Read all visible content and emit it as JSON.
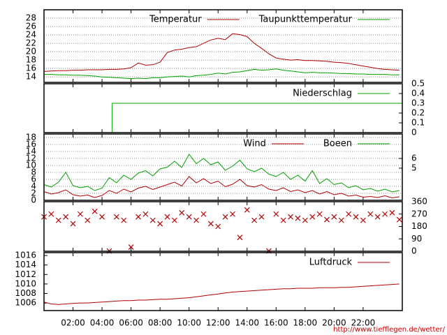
{
  "chart_data": [
    {
      "type": "line",
      "yaxis_side": "left",
      "grid": true,
      "legend": "upper right",
      "xlim": [
        0,
        24.7
      ],
      "ylim": [
        12.7,
        30
      ],
      "yticks": [
        14,
        16,
        18,
        20,
        22,
        24,
        26,
        28
      ],
      "x": [
        0,
        0.5,
        1,
        1.5,
        2,
        2.5,
        3,
        3.5,
        4,
        4.5,
        5,
        5.5,
        6,
        6.5,
        7,
        7.5,
        8,
        8.5,
        9,
        9.5,
        10,
        10.5,
        11,
        11.5,
        12,
        12.5,
        13,
        13.5,
        14,
        14.5,
        15,
        15.5,
        16,
        16.5,
        17,
        17.5,
        18,
        18.5,
        19,
        19.5,
        20,
        20.5,
        21,
        21.5,
        22,
        22.5,
        23,
        23.5,
        24,
        24.5
      ],
      "series": [
        {
          "name": "Temperatur",
          "color": "#b00000",
          "values": [
            15.3,
            15.4,
            15.5,
            15.5,
            15.6,
            15.6,
            15.7,
            15.7,
            15.7,
            15.8,
            15.8,
            15.9,
            16.2,
            17.3,
            16.8,
            16.9,
            17.5,
            19.8,
            20.4,
            20.6,
            21.0,
            21.2,
            22.0,
            22.8,
            23.2,
            22.9,
            24.3,
            24.1,
            23.6,
            22.0,
            20.8,
            19.5,
            18.5,
            18.2,
            18.0,
            18.1,
            17.9,
            17.9,
            17.8,
            17.7,
            17.5,
            17.4,
            17.2,
            16.9,
            16.6,
            16.3,
            16.0,
            15.8,
            15.7,
            15.6
          ]
        },
        {
          "name": "Taupunkttemperatur",
          "color": "#00a000",
          "values": [
            14.6,
            14.6,
            14.5,
            14.5,
            14.4,
            14.4,
            14.3,
            14.2,
            14.0,
            13.9,
            13.8,
            13.7,
            13.6,
            13.7,
            13.6,
            13.8,
            13.8,
            14.0,
            14.1,
            14.2,
            14.0,
            14.3,
            14.4,
            14.6,
            14.9,
            14.7,
            15.1,
            15.2,
            15.5,
            15.8,
            15.6,
            15.7,
            15.9,
            15.6,
            15.4,
            15.2,
            15.0,
            15.1,
            15.0,
            15.0,
            14.9,
            14.8,
            14.8,
            14.7,
            14.7,
            14.6,
            14.6,
            14.6,
            14.5,
            14.5
          ]
        }
      ]
    },
    {
      "type": "line",
      "yaxis_side": "right",
      "grid": false,
      "legend": "upper right",
      "xlim": [
        0,
        24.7
      ],
      "ylim": [
        0,
        0.5
      ],
      "yticks": [
        0,
        0.1,
        0.2,
        0.3,
        0.4,
        0.5
      ],
      "x": [
        0,
        4.7,
        4.7,
        24.7
      ],
      "series": [
        {
          "name": "Niederschlag",
          "color": "#00a000",
          "values": [
            0,
            0,
            0.3,
            0.3
          ]
        }
      ]
    },
    {
      "type": "line",
      "yaxis_side": "left",
      "grid": true,
      "legend": "upper right",
      "xlim": [
        0,
        24.7
      ],
      "ylim": [
        0,
        19
      ],
      "yticks": [
        0,
        2,
        4,
        6,
        8,
        10,
        12,
        14,
        16,
        18
      ],
      "y2lim": [
        1.71,
        8.5
      ],
      "y2ticks": [
        5,
        6
      ],
      "x": [
        0,
        0.5,
        1,
        1.5,
        2,
        2.5,
        3,
        3.5,
        4,
        4.5,
        5,
        5.5,
        6,
        6.5,
        7,
        7.5,
        8,
        8.5,
        9,
        9.5,
        10,
        10.5,
        11,
        11.5,
        12,
        12.5,
        13,
        13.5,
        14,
        14.5,
        15,
        15.5,
        16,
        16.5,
        17,
        17.5,
        18,
        18.5,
        19,
        19.5,
        20,
        20.5,
        21,
        21.5,
        22,
        22.5,
        23,
        23.5,
        24,
        24.5
      ],
      "series": [
        {
          "name": "Wind",
          "color": "#b00000",
          "values": [
            2.5,
            1.8,
            2.2,
            3.0,
            1.6,
            1.2,
            1.5,
            0.8,
            1.4,
            2.8,
            2.0,
            3.2,
            2.4,
            3.5,
            4.0,
            3.1,
            3.8,
            4.5,
            5.2,
            4.1,
            6.8,
            5.0,
            6.2,
            4.8,
            5.5,
            3.9,
            4.6,
            6.0,
            4.2,
            3.8,
            4.5,
            3.2,
            2.8,
            3.6,
            2.5,
            3.0,
            2.2,
            2.8,
            1.8,
            2.5,
            1.6,
            2.0,
            1.2,
            1.5,
            0.9,
            1.1,
            0.8,
            1.3,
            0.7,
            1.0
          ]
        },
        {
          "name": "Boeen",
          "color": "#00a000",
          "values": [
            4.5,
            3.8,
            5.2,
            8.0,
            4.2,
            3.6,
            4.0,
            2.8,
            3.5,
            6.5,
            5.0,
            7.2,
            6.0,
            7.8,
            8.5,
            7.0,
            9.0,
            9.5,
            11.2,
            9.4,
            13.2,
            10.5,
            12.0,
            10.2,
            11.0,
            8.6,
            9.8,
            11.5,
            9.0,
            8.2,
            9.2,
            7.5,
            6.8,
            8.0,
            6.0,
            7.2,
            5.5,
            8.5,
            4.8,
            6.2,
            4.5,
            5.0,
            3.6,
            4.2,
            3.0,
            3.4,
            2.6,
            3.2,
            2.4,
            2.8
          ]
        }
      ]
    },
    {
      "type": "scatter",
      "yaxis_side": "right",
      "grid": false,
      "xlim": [
        0,
        24.7
      ],
      "ylim": [
        0,
        360
      ],
      "yticks": [
        0,
        90,
        180,
        270,
        360
      ],
      "x": [
        0,
        0.5,
        1,
        1.5,
        2,
        2.5,
        3,
        3.5,
        4,
        4.5,
        5,
        5.5,
        6,
        6.5,
        7,
        7.5,
        8,
        8.5,
        9,
        9.5,
        10,
        10.5,
        11,
        11.5,
        12,
        12.5,
        13,
        13.5,
        14,
        14.5,
        15,
        15.5,
        16,
        16.5,
        17,
        17.5,
        18,
        18.5,
        19,
        19.5,
        20,
        20.5,
        21,
        21.5,
        22,
        22.5,
        23,
        23.5,
        24,
        24.5
      ],
      "series": [
        {
          "color": "#b00000",
          "values": [
            250,
            270,
            225,
            250,
            200,
            270,
            225,
            290,
            250,
            2,
            250,
            225,
            30,
            250,
            270,
            225,
            200,
            250,
            225,
            280,
            250,
            225,
            270,
            200,
            180,
            250,
            270,
            100,
            300,
            225,
            250,
            2,
            270,
            225,
            250,
            240,
            225,
            250,
            270,
            230,
            250,
            225,
            270,
            250,
            225,
            270,
            250,
            270,
            280,
            230
          ]
        }
      ]
    },
    {
      "type": "line",
      "yaxis_side": "left",
      "grid": false,
      "legend": "upper right",
      "xlim": [
        0,
        24.7
      ],
      "ylim": [
        1004.4,
        1016.6
      ],
      "yticks": [
        1006,
        1008,
        1010,
        1012,
        1014,
        1016
      ],
      "xticks": [
        {
          "value": 2,
          "label": "02:00"
        },
        {
          "value": 4,
          "label": "04:00"
        },
        {
          "value": 6,
          "label": "06:00"
        },
        {
          "value": 8,
          "label": "08:00"
        },
        {
          "value": 10,
          "label": "10:00"
        },
        {
          "value": 12,
          "label": "12:00"
        },
        {
          "value": 14,
          "label": "14:00"
        },
        {
          "value": 16,
          "label": "16:00"
        },
        {
          "value": 18,
          "label": "18:00"
        },
        {
          "value": 20,
          "label": "20:00"
        },
        {
          "value": 22,
          "label": "22:00"
        }
      ],
      "x": [
        0,
        0.5,
        1,
        1.5,
        2,
        2.5,
        3,
        3.5,
        4,
        4.5,
        5,
        5.5,
        6,
        6.5,
        7,
        7.5,
        8,
        8.5,
        9,
        9.5,
        10,
        10.5,
        11,
        11.5,
        12,
        12.5,
        13,
        13.5,
        14,
        14.5,
        15,
        15.5,
        16,
        16.5,
        17,
        17.5,
        18,
        18.5,
        19,
        19.5,
        20,
        20.5,
        21,
        21.5,
        22,
        22.5,
        23,
        23.5,
        24,
        24.5
      ],
      "series": [
        {
          "name": "Luftdruck",
          "color": "#b00000",
          "values": [
            1006.2,
            1005.8,
            1005.7,
            1005.8,
            1005.9,
            1006.0,
            1006.0,
            1006.1,
            1006.2,
            1006.3,
            1006.4,
            1006.5,
            1006.5,
            1006.6,
            1006.6,
            1006.7,
            1006.8,
            1006.8,
            1006.9,
            1007.0,
            1007.1,
            1007.3,
            1007.5,
            1007.7,
            1007.9,
            1008.1,
            1008.3,
            1008.4,
            1008.5,
            1008.6,
            1008.7,
            1008.8,
            1008.9,
            1009.0,
            1009.0,
            1009.1,
            1009.1,
            1009.1,
            1009.2,
            1009.2,
            1009.2,
            1009.3,
            1009.3,
            1009.4,
            1009.5,
            1009.6,
            1009.7,
            1009.8,
            1009.9,
            1010.0
          ]
        }
      ]
    }
  ],
  "source_url": "http://www.tiefflegen.de/wetter/"
}
